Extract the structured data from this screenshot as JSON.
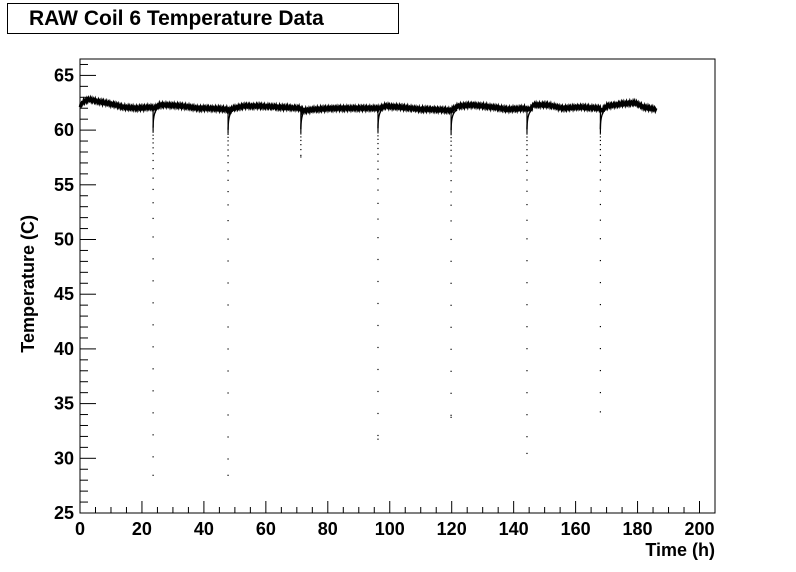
{
  "chart_data": {
    "type": "scatter",
    "title": "RAW Coil 6 Temperature Data",
    "xlabel": "Time (h)",
    "ylabel": "Temperature (C)",
    "xlim": [
      0,
      205
    ],
    "ylim": [
      25,
      66.5
    ],
    "x_ticks": [
      0,
      20,
      40,
      60,
      80,
      100,
      120,
      140,
      160,
      180,
      200
    ],
    "y_ticks": [
      25,
      30,
      35,
      40,
      45,
      50,
      55,
      60,
      65
    ],
    "grid": false,
    "legend": "none",
    "marker_color": "#000000",
    "series": [
      {
        "baseline": [
          [
            0,
            62.1
          ],
          [
            1,
            62.6
          ],
          [
            3,
            62.8
          ],
          [
            6,
            62.6
          ],
          [
            10,
            62.4
          ],
          [
            14,
            62.1
          ],
          [
            18,
            62.0
          ],
          [
            23.2,
            62.1
          ],
          [
            24.2,
            62.0
          ],
          [
            25.5,
            62.3
          ],
          [
            28,
            62.3
          ],
          [
            33,
            62.2
          ],
          [
            38,
            62.0
          ],
          [
            42,
            62.0
          ],
          [
            47.5,
            61.9
          ],
          [
            48.3,
            61.8
          ],
          [
            49.5,
            62.0
          ],
          [
            53,
            62.2
          ],
          [
            58,
            62.2
          ],
          [
            64,
            62.1
          ],
          [
            71,
            62.0
          ],
          [
            71.6,
            61.8
          ],
          [
            72.5,
            61.8
          ],
          [
            76,
            61.9
          ],
          [
            82,
            62.0
          ],
          [
            89,
            62.0
          ],
          [
            95.8,
            62.0
          ],
          [
            96.8,
            62.0
          ],
          [
            98.5,
            62.2
          ],
          [
            103,
            62.1
          ],
          [
            110,
            61.9
          ],
          [
            114,
            61.9
          ],
          [
            119.5,
            61.8
          ],
          [
            120.4,
            61.9
          ],
          [
            122,
            62.2
          ],
          [
            127,
            62.3
          ],
          [
            133,
            62.1
          ],
          [
            138,
            61.9
          ],
          [
            143.7,
            62.0
          ],
          [
            144.8,
            61.8
          ],
          [
            146.5,
            62.3
          ],
          [
            151,
            62.3
          ],
          [
            156,
            62.0
          ],
          [
            161,
            62.1
          ],
          [
            167.5,
            62.0
          ],
          [
            168.5,
            61.8
          ],
          [
            170,
            62.2
          ],
          [
            175,
            62.4
          ],
          [
            179,
            62.5
          ],
          [
            182,
            62.1
          ],
          [
            186,
            61.9
          ]
        ],
        "dips": [
          {
            "t": 23.6,
            "min": 28.5
          },
          {
            "t": 47.8,
            "min": 28.5
          },
          {
            "t": 71.3,
            "min": 57.6
          },
          {
            "t": 96.2,
            "min": 31.8
          },
          {
            "t": 119.8,
            "min": 33.8
          },
          {
            "t": 144.3,
            "min": 30.5
          },
          {
            "t": 168.0,
            "min": 34.3
          }
        ]
      }
    ]
  }
}
